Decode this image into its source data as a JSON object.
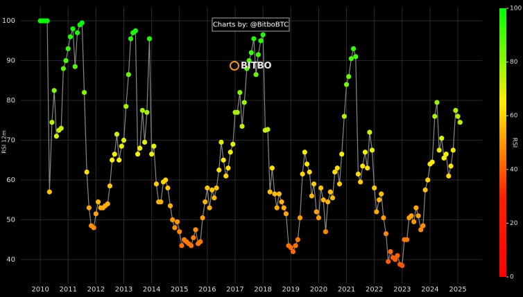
{
  "chart_data": {
    "type": "scatter-line",
    "annotation": "Charts by: @BitboBTC",
    "watermark": "BITBO",
    "ylabel": "RSI 12m",
    "colorbar_label": "RSI",
    "line_color": "#888888",
    "grid": true,
    "xlim": [
      2009.3,
      2025.87
    ],
    "ylim": [
      33.9,
      103.5
    ],
    "xticks": [
      2010,
      2011,
      2012,
      2013,
      2014,
      2015,
      2016,
      2017,
      2018,
      2019,
      2020,
      2021,
      2022,
      2023,
      2024,
      2025
    ],
    "yticks": [
      40,
      50,
      60,
      70,
      80,
      90,
      100
    ],
    "colorbar_lim": [
      0,
      100
    ],
    "colorbar_ticks": [
      0,
      20,
      40,
      60,
      80,
      100
    ],
    "colorscale": [
      [
        0,
        "#ff0000"
      ],
      [
        30,
        "#ff2000"
      ],
      [
        50,
        "#ff9900"
      ],
      [
        65,
        "#ffee00"
      ],
      [
        100,
        "#00ff00"
      ]
    ],
    "x": [
      2010,
      2010.08,
      2010.17,
      2010.25,
      2010.33,
      2010.42,
      2010.5,
      2010.58,
      2010.67,
      2010.75,
      2010.83,
      2010.92,
      2011,
      2011.08,
      2011.17,
      2011.25,
      2011.33,
      2011.42,
      2011.5,
      2011.58,
      2011.67,
      2011.75,
      2011.83,
      2011.92,
      2012,
      2012.08,
      2012.17,
      2012.25,
      2012.33,
      2012.42,
      2012.5,
      2012.58,
      2012.67,
      2012.75,
      2012.83,
      2012.92,
      2013,
      2013.08,
      2013.17,
      2013.25,
      2013.33,
      2013.42,
      2013.5,
      2013.58,
      2013.67,
      2013.75,
      2013.83,
      2013.92,
      2014,
      2014.08,
      2014.17,
      2014.25,
      2014.33,
      2014.42,
      2014.5,
      2014.58,
      2014.67,
      2014.75,
      2014.83,
      2014.92,
      2015,
      2015.08,
      2015.17,
      2015.25,
      2015.33,
      2015.42,
      2015.5,
      2015.58,
      2015.67,
      2015.75,
      2015.83,
      2015.92,
      2016,
      2016.08,
      2016.17,
      2016.25,
      2016.33,
      2016.42,
      2016.5,
      2016.58,
      2016.67,
      2016.75,
      2016.83,
      2016.92,
      2017,
      2017.08,
      2017.17,
      2017.25,
      2017.33,
      2017.42,
      2017.5,
      2017.58,
      2017.67,
      2017.75,
      2017.83,
      2017.92,
      2018,
      2018.08,
      2018.17,
      2018.25,
      2018.33,
      2018.42,
      2018.5,
      2018.58,
      2018.67,
      2018.75,
      2018.83,
      2018.92,
      2019,
      2019.08,
      2019.17,
      2019.25,
      2019.33,
      2019.42,
      2019.5,
      2019.58,
      2019.67,
      2019.75,
      2019.83,
      2019.92,
      2020,
      2020.08,
      2020.17,
      2020.25,
      2020.33,
      2020.42,
      2020.5,
      2020.58,
      2020.67,
      2020.75,
      2020.83,
      2020.92,
      2021,
      2021.08,
      2021.17,
      2021.25,
      2021.33,
      2021.42,
      2021.5,
      2021.58,
      2021.67,
      2021.75,
      2021.83,
      2021.92,
      2022,
      2022.08,
      2022.17,
      2022.25,
      2022.33,
      2022.42,
      2022.5,
      2022.58,
      2022.67,
      2022.75,
      2022.83,
      2022.92,
      2023,
      2023.08,
      2023.17,
      2023.25,
      2023.33,
      2023.42,
      2023.5,
      2023.58,
      2023.67,
      2023.75,
      2023.83,
      2023.92,
      2024,
      2024.08,
      2024.17,
      2024.25,
      2024.33,
      2024.42,
      2024.5,
      2024.58,
      2024.67,
      2024.75,
      2024.83,
      2024.92,
      2025,
      2025.08
    ],
    "values": [
      100,
      100,
      100,
      100,
      57,
      74.5,
      82.5,
      71,
      72.5,
      73,
      88,
      90,
      93,
      96,
      98,
      88.5,
      97,
      99,
      99.5,
      82,
      62,
      53,
      48.5,
      48,
      51.5,
      54.5,
      53,
      53,
      53.5,
      54,
      58.5,
      65,
      66.5,
      71.5,
      65,
      68.5,
      70,
      78.5,
      86.5,
      95.5,
      97,
      97.5,
      66.5,
      68,
      77.5,
      69.5,
      77,
      95.5,
      66.5,
      68.5,
      59,
      54.5,
      54.5,
      59.5,
      60,
      58,
      53.5,
      50,
      48,
      49.5,
      47,
      43.5,
      45,
      44.5,
      44,
      43.5,
      45.5,
      47.5,
      44,
      44.5,
      50.5,
      54.5,
      58,
      53,
      57.5,
      55.5,
      58,
      62.5,
      69.5,
      65,
      61,
      63,
      67,
      69,
      77,
      77,
      82,
      73.5,
      79.5,
      88,
      90,
      92,
      95.5,
      86.5,
      91.5,
      95,
      96.5,
      72.5,
      72.7,
      57,
      63,
      56.5,
      53,
      56.5,
      54.5,
      53,
      51.5,
      43.5,
      43,
      42,
      43.5,
      45,
      50.5,
      61.5,
      67,
      64,
      62,
      56,
      59,
      52,
      50.5,
      58,
      55,
      47,
      54.5,
      57,
      55.5,
      62,
      63,
      59,
      66.5,
      76,
      84,
      86,
      90.5,
      93,
      91,
      61.5,
      59.5,
      63.5,
      67,
      63,
      72,
      67.5,
      58,
      52,
      55,
      56.5,
      50.5,
      46.5,
      39.5,
      42,
      40.5,
      40,
      41,
      38.8,
      38.5,
      45,
      45,
      50.5,
      51,
      49.5,
      53,
      51,
      47.5,
      48.5,
      57.5,
      60,
      64,
      64.5,
      76,
      79.5,
      67.5,
      70.5,
      65.5,
      66.5,
      61,
      63.5,
      67.5,
      77.5,
      76,
      74.5
    ]
  }
}
